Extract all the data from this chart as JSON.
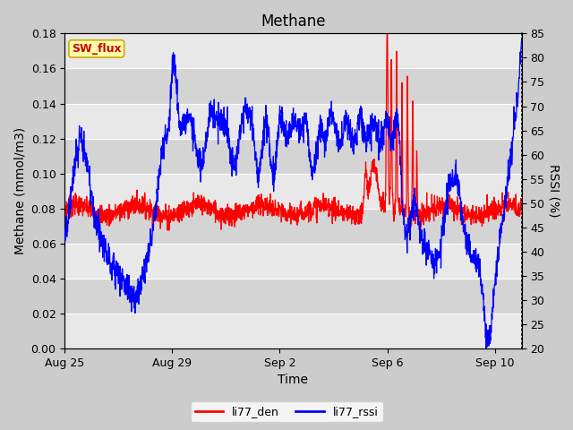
{
  "title": "Methane",
  "xlabel": "Time",
  "ylabel_left": "Methane (mmol/m3)",
  "ylabel_right": "RSSI (%)",
  "ylim_left": [
    0.0,
    0.18
  ],
  "ylim_right": [
    20,
    85
  ],
  "yticks_left": [
    0.0,
    0.02,
    0.04,
    0.06,
    0.08,
    0.1,
    0.12,
    0.14,
    0.16,
    0.18
  ],
  "yticks_right": [
    20,
    25,
    30,
    35,
    40,
    45,
    50,
    55,
    60,
    65,
    70,
    75,
    80,
    85
  ],
  "xtick_labels": [
    "Aug 25",
    "Aug 29",
    "Sep 2",
    "Sep 6",
    "Sep 10"
  ],
  "xtick_positions": [
    0,
    4,
    8,
    12,
    16
  ],
  "xlim": [
    0,
    17
  ],
  "sw_flux_label": "SW_flux",
  "sw_flux_facecolor": "#ffffaa",
  "sw_flux_edgecolor": "#ccaa00",
  "sw_flux_text_color": "#cc0000",
  "line_color_den": "red",
  "line_color_rssi": "blue",
  "fig_facecolor": "#cccccc",
  "plot_facecolor": "#e0e0e0",
  "band_light": "#e8e8e8",
  "band_dark": "#d4d4d4",
  "title_fontsize": 12,
  "axis_label_fontsize": 10,
  "tick_fontsize": 9,
  "legend_labels": [
    "li77_den",
    "li77_rssi"
  ]
}
